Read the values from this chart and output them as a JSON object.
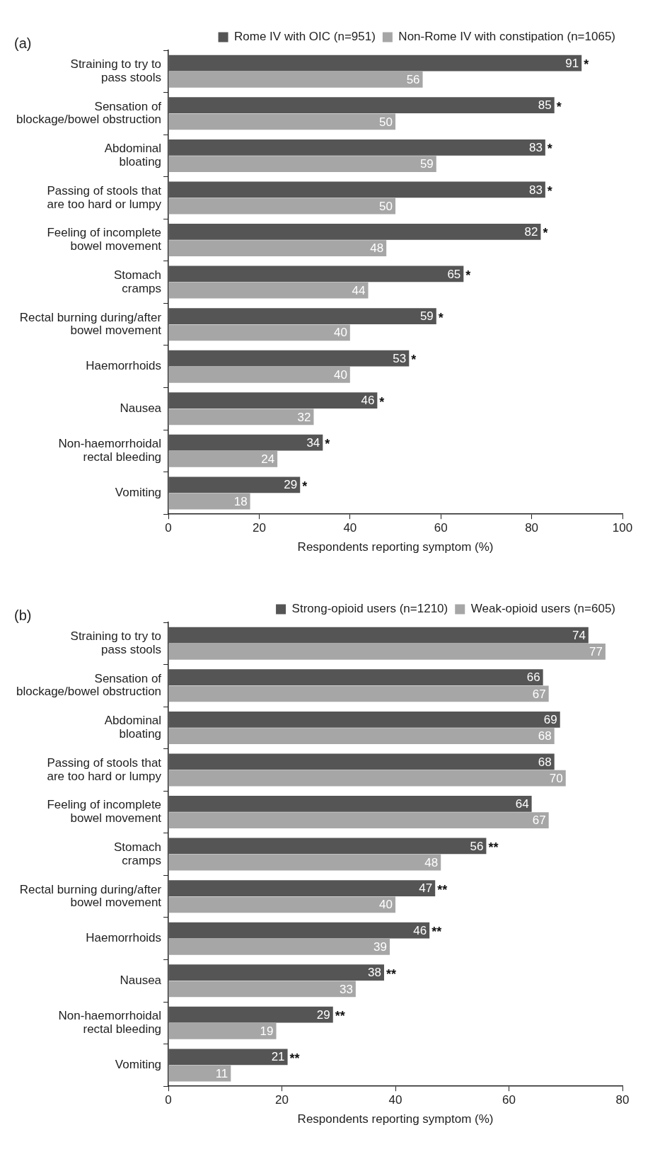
{
  "chart_data": [
    {
      "type": "bar",
      "orientation": "horizontal",
      "title": "(a)",
      "xlabel": "Respondents reporting symptom (%)",
      "categories": [
        "Straining to try to\npass stools",
        "Sensation of\nblockage/bowel obstruction",
        "Abdominal\nbloating",
        "Passing of stools that\nare too hard or lumpy",
        "Feeling of incomplete\nbowel movement",
        "Stomach\ncramps",
        "Rectal burning during/after\nbowel movement",
        "Haemorrhoids",
        "Nausea",
        "Non-haemorrhoidal\nrectal bleeding",
        "Vomiting"
      ],
      "series": [
        {
          "name": "Rome IV with OIC (n=951)",
          "color": "#555555",
          "values": [
            91,
            85,
            83,
            83,
            82,
            65,
            59,
            53,
            46,
            34,
            29
          ]
        },
        {
          "name": "Non-Rome IV with constipation (n=1065)",
          "color": "#a6a6a6",
          "values": [
            56,
            50,
            59,
            50,
            48,
            44,
            40,
            40,
            32,
            24,
            18
          ]
        }
      ],
      "xlim": [
        0,
        100
      ],
      "xticks": [
        0,
        20,
        40,
        60,
        80,
        100
      ],
      "grid": false,
      "legend": "top right",
      "data_labels": true,
      "annotations": [
        {
          "text": "*",
          "x": 91,
          "y": "Straining to try to\npass stools"
        },
        {
          "text": "*",
          "x": 85,
          "y": "Sensation of\nblockage/bowel obstruction"
        },
        {
          "text": "*",
          "x": 83,
          "y": "Abdominal\nbloating"
        },
        {
          "text": "*",
          "x": 83,
          "y": "Passing of stools that\nare too hard or lumpy"
        },
        {
          "text": "*",
          "x": 82,
          "y": "Feeling of incomplete\nbowel movement"
        },
        {
          "text": "*",
          "x": 65,
          "y": "Stomach\ncramps"
        },
        {
          "text": "*",
          "x": 59,
          "y": "Rectal burning during/after\nbowel movement"
        },
        {
          "text": "*",
          "x": 53,
          "y": "Haemorrhoids"
        },
        {
          "text": "*",
          "x": 46,
          "y": "Nausea"
        },
        {
          "text": "*",
          "x": 34,
          "y": "Non-haemorrhoidal\nrectal bleeding"
        },
        {
          "text": "*",
          "x": 29,
          "y": "Vomiting"
        }
      ]
    },
    {
      "type": "bar",
      "orientation": "horizontal",
      "title": "(b)",
      "xlabel": "Respondents reporting symptom (%)",
      "categories": [
        "Straining to try to\npass stools",
        "Sensation of\nblockage/bowel obstruction",
        "Abdominal\nbloating",
        "Passing of stools that\nare too hard or lumpy",
        "Feeling of incomplete\nbowel movement",
        "Stomach\ncramps",
        "Rectal burning during/after\nbowel movement",
        "Haemorrhoids",
        "Nausea",
        "Non-haemorrhoidal\nrectal bleeding",
        "Vomiting"
      ],
      "series": [
        {
          "name": "Strong-opioid users (n=1210)",
          "color": "#555555",
          "values": [
            74,
            66,
            69,
            68,
            64,
            56,
            47,
            46,
            38,
            29,
            21
          ]
        },
        {
          "name": "Weak-opioid users (n=605)",
          "color": "#a6a6a6",
          "values": [
            77,
            67,
            68,
            70,
            67,
            48,
            40,
            39,
            33,
            19,
            11
          ]
        }
      ],
      "xlim": [
        0,
        80
      ],
      "xticks": [
        0,
        20,
        40,
        60,
        80
      ],
      "grid": false,
      "legend": "top right",
      "data_labels": true,
      "annotations": [
        {
          "text": "**",
          "x": 56,
          "y": "Stomach\ncramps"
        },
        {
          "text": "**",
          "x": 47,
          "y": "Rectal burning during/after\nbowel movement"
        },
        {
          "text": "**",
          "x": 46,
          "y": "Haemorrhoids"
        },
        {
          "text": "**",
          "x": 38,
          "y": "Nausea"
        },
        {
          "text": "**",
          "x": 29,
          "y": "Non-haemorrhoidal\nrectal bleeding"
        },
        {
          "text": "**",
          "x": 21,
          "y": "Vomiting"
        }
      ]
    }
  ]
}
